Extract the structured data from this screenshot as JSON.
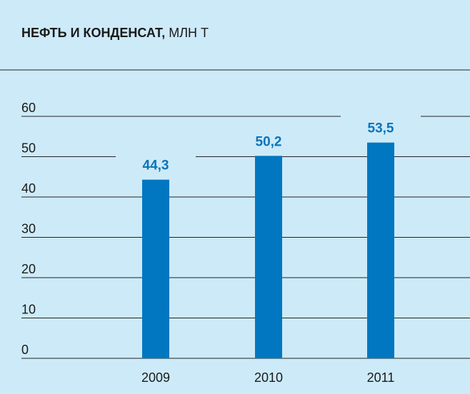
{
  "chart_data": {
    "type": "bar",
    "title": "НЕФТЬ И КОНДЕНСАТ,",
    "y_label": "МЛН Т",
    "categories": [
      "2009",
      "2010",
      "2011"
    ],
    "values": [
      44.3,
      50.2,
      53.5
    ],
    "value_labels": [
      "44,3",
      "50,2",
      "53,5"
    ],
    "color": "#0077c0",
    "ylim": [
      0,
      60
    ],
    "yticks": [
      0,
      10,
      20,
      30,
      40,
      50,
      60
    ],
    "grid": true
  }
}
